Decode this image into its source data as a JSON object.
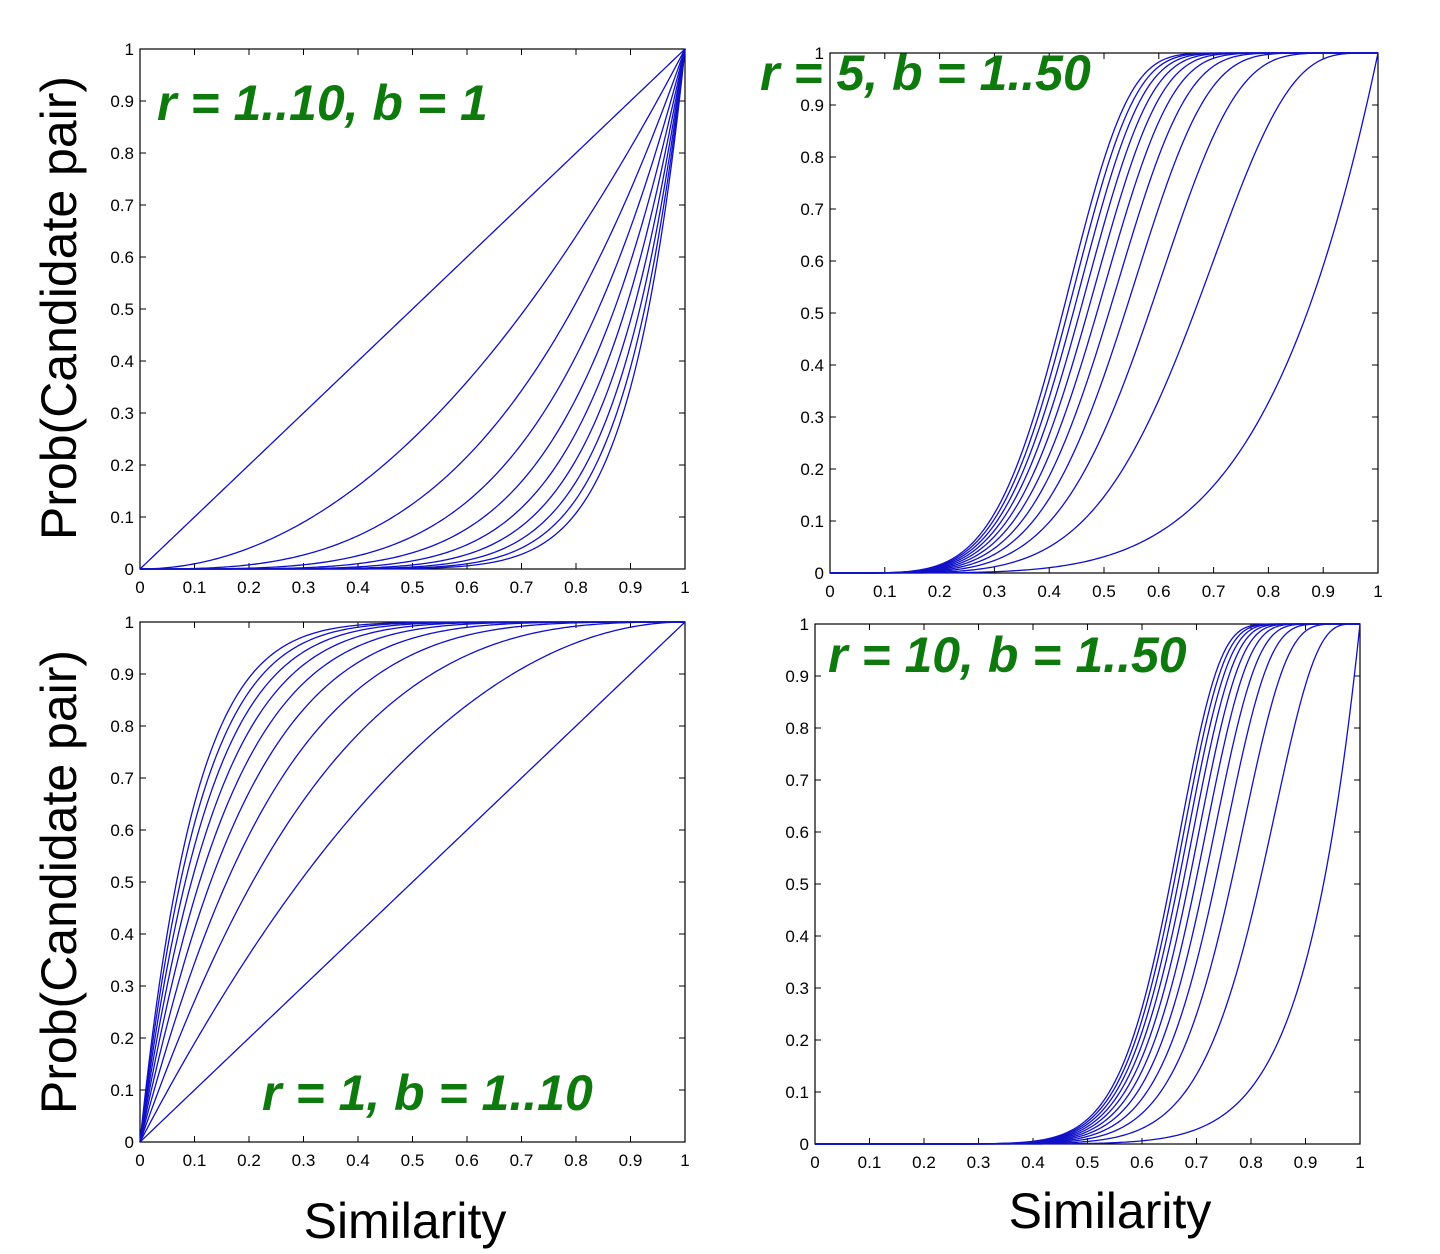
{
  "colors": {
    "curve": "#1010c8",
    "annotation": "#0e7a0e",
    "axis": "#000000"
  },
  "axis_labels": {
    "y_top": "Prob(Candidate pair)",
    "y_bottom": "Prob(Candidate pair)",
    "x_left": "Similarity",
    "x_right": "Similarity"
  },
  "chart_data": [
    {
      "type": "line",
      "annotation": "r = 1..10, b = 1",
      "formula": "1-(1-s^r)^b",
      "r": [
        1,
        2,
        3,
        4,
        5,
        6,
        7,
        8,
        9,
        10
      ],
      "b": [
        1
      ],
      "xlim": [
        0,
        1
      ],
      "ylim": [
        0,
        1
      ],
      "xticks": [
        "0",
        "0.1",
        "0.2",
        "0.3",
        "0.4",
        "0.5",
        "0.6",
        "0.7",
        "0.8",
        "0.9",
        "1"
      ],
      "yticks": [
        "0",
        "0.1",
        "0.2",
        "0.3",
        "0.4",
        "0.5",
        "0.6",
        "0.7",
        "0.8",
        "0.9",
        "1"
      ]
    },
    {
      "type": "line",
      "annotation": "r = 5, b = 1..50",
      "formula": "1-(1-s^r)^b",
      "r": [
        5
      ],
      "b": [
        1,
        5,
        10,
        15,
        20,
        25,
        30,
        35,
        40,
        45,
        50
      ],
      "xlim": [
        0,
        1
      ],
      "ylim": [
        0,
        1
      ],
      "xticks": [
        "0",
        "0.1",
        "0.2",
        "0.3",
        "0.4",
        "0.5",
        "0.6",
        "0.7",
        "0.8",
        "0.9",
        "1"
      ],
      "yticks": [
        "0",
        "0.1",
        "0.2",
        "0.3",
        "0.4",
        "0.5",
        "0.6",
        "0.7",
        "0.8",
        "0.9",
        "1"
      ]
    },
    {
      "type": "line",
      "annotation": "r = 1, b = 1..10",
      "formula": "1-(1-s^r)^b",
      "r": [
        1
      ],
      "b": [
        1,
        2,
        3,
        4,
        5,
        6,
        7,
        8,
        9,
        10
      ],
      "xlim": [
        0,
        1
      ],
      "ylim": [
        0,
        1
      ],
      "xticks": [
        "0",
        "0.1",
        "0.2",
        "0.3",
        "0.4",
        "0.5",
        "0.6",
        "0.7",
        "0.8",
        "0.9",
        "1"
      ],
      "yticks": [
        "0",
        "0.1",
        "0.2",
        "0.3",
        "0.4",
        "0.5",
        "0.6",
        "0.7",
        "0.8",
        "0.9",
        "1"
      ]
    },
    {
      "type": "line",
      "annotation": "r = 10, b = 1..50",
      "formula": "1-(1-s^r)^b",
      "r": [
        10
      ],
      "b": [
        1,
        5,
        10,
        15,
        20,
        25,
        30,
        35,
        40,
        45,
        50
      ],
      "xlim": [
        0,
        1
      ],
      "ylim": [
        0,
        1
      ],
      "xticks": [
        "0",
        "0.1",
        "0.2",
        "0.3",
        "0.4",
        "0.5",
        "0.6",
        "0.7",
        "0.8",
        "0.9",
        "1"
      ],
      "yticks": [
        "0",
        "0.1",
        "0.2",
        "0.3",
        "0.4",
        "0.5",
        "0.6",
        "0.7",
        "0.8",
        "0.9",
        "1"
      ]
    }
  ]
}
